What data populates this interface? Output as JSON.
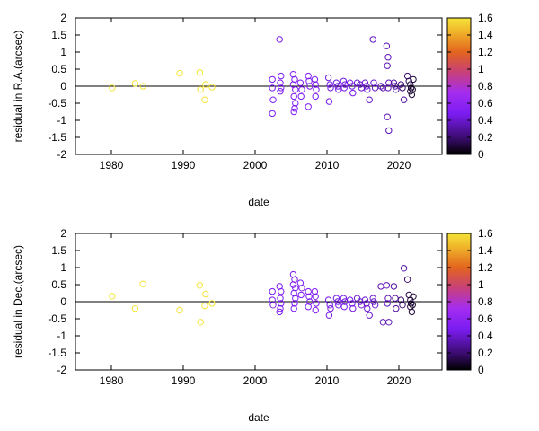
{
  "chart_data": [
    {
      "type": "scatter",
      "xlabel": "date",
      "ylabel": "residual in R.A.(arcsec)",
      "xlim": [
        1975,
        2026
      ],
      "ylim": [
        -2,
        2
      ],
      "x_ticks": [
        "1980",
        "1990",
        "2000",
        "2010",
        "2020"
      ],
      "y_ticks": [
        "-2",
        "-1.5",
        "-1",
        "-0.5",
        "0",
        "0.5",
        "1",
        "1.5",
        "2"
      ],
      "colorbar": {
        "range": [
          0,
          1.6
        ],
        "ticks": [
          "0",
          "0.2",
          "0.4",
          "0.6",
          "0.8",
          "1",
          "1.2",
          "1.4",
          "1.6"
        ]
      },
      "zero_line": true,
      "grid": false,
      "points": [
        [
          1980.1,
          -0.05,
          1.6
        ],
        [
          1983.3,
          0.08,
          1.6
        ],
        [
          1984.4,
          0.0,
          1.6
        ],
        [
          1989.5,
          0.38,
          1.6
        ],
        [
          1992.3,
          0.4,
          1.6
        ],
        [
          1992.4,
          -0.1,
          1.6
        ],
        [
          1993.1,
          0.05,
          1.6
        ],
        [
          1993.0,
          -0.4,
          1.6
        ],
        [
          1994.0,
          -0.03,
          1.6
        ],
        [
          2002.4,
          0.2,
          0.5
        ],
        [
          2002.4,
          -0.05,
          0.5
        ],
        [
          2002.5,
          -0.4,
          0.5
        ],
        [
          2002.4,
          -0.8,
          0.5
        ],
        [
          2003.4,
          1.37,
          0.5
        ],
        [
          2003.6,
          0.3,
          0.5
        ],
        [
          2003.5,
          0.1,
          0.5
        ],
        [
          2003.6,
          -0.05,
          0.5
        ],
        [
          2003.5,
          -0.15,
          0.5
        ],
        [
          2005.3,
          0.35,
          0.5
        ],
        [
          2005.5,
          0.2,
          0.5
        ],
        [
          2005.3,
          0.05,
          0.5
        ],
        [
          2005.6,
          -0.1,
          0.5
        ],
        [
          2005.4,
          -0.3,
          0.5
        ],
        [
          2005.6,
          -0.5,
          0.5
        ],
        [
          2005.5,
          -0.65,
          0.5
        ],
        [
          2005.4,
          -0.75,
          0.5
        ],
        [
          2006.3,
          0.1,
          0.5
        ],
        [
          2006.5,
          -0.1,
          0.5
        ],
        [
          2006.4,
          -0.3,
          0.5
        ],
        [
          2007.4,
          0.3,
          0.5
        ],
        [
          2007.5,
          0.15,
          0.5
        ],
        [
          2007.6,
          0.0,
          0.5
        ],
        [
          2007.4,
          -0.6,
          0.5
        ],
        [
          2008.3,
          0.2,
          0.5
        ],
        [
          2008.4,
          0.05,
          0.5
        ],
        [
          2008.5,
          -0.1,
          0.5
        ],
        [
          2008.4,
          -0.3,
          0.5
        ],
        [
          2010.2,
          0.25,
          0.45
        ],
        [
          2010.4,
          0.05,
          0.45
        ],
        [
          2010.5,
          -0.05,
          0.45
        ],
        [
          2010.3,
          -0.45,
          0.45
        ],
        [
          2011.3,
          0.1,
          0.45
        ],
        [
          2011.5,
          0.0,
          0.45
        ],
        [
          2011.6,
          -0.1,
          0.45
        ],
        [
          2012.3,
          0.15,
          0.45
        ],
        [
          2012.5,
          0.05,
          0.45
        ],
        [
          2012.4,
          -0.05,
          0.45
        ],
        [
          2013.2,
          0.1,
          0.45
        ],
        [
          2013.5,
          0.0,
          0.45
        ],
        [
          2013.6,
          -0.2,
          0.45
        ],
        [
          2014.2,
          0.1,
          0.4
        ],
        [
          2014.6,
          0.05,
          0.4
        ],
        [
          2014.8,
          -0.05,
          0.4
        ],
        [
          2015.3,
          0.1,
          0.4
        ],
        [
          2015.5,
          0.0,
          0.4
        ],
        [
          2015.6,
          -0.1,
          0.4
        ],
        [
          2015.9,
          -0.4,
          0.4
        ],
        [
          2016.4,
          1.37,
          0.4
        ],
        [
          2016.5,
          0.1,
          0.4
        ],
        [
          2016.7,
          -0.05,
          0.4
        ],
        [
          2017.5,
          0.0,
          0.35
        ],
        [
          2017.8,
          -0.05,
          0.35
        ],
        [
          2018.3,
          1.18,
          0.35
        ],
        [
          2018.5,
          0.85,
          0.35
        ],
        [
          2018.4,
          0.6,
          0.35
        ],
        [
          2018.6,
          0.1,
          0.35
        ],
        [
          2018.5,
          -0.05,
          0.35
        ],
        [
          2018.4,
          -0.9,
          0.35
        ],
        [
          2018.6,
          -1.3,
          0.35
        ],
        [
          2019.3,
          0.1,
          0.3
        ],
        [
          2019.5,
          0.0,
          0.3
        ],
        [
          2019.6,
          -0.1,
          0.3
        ],
        [
          2020.3,
          0.05,
          0.2
        ],
        [
          2020.5,
          -0.05,
          0.2
        ],
        [
          2020.7,
          -0.4,
          0.3
        ],
        [
          2021.2,
          0.3,
          0.2
        ],
        [
          2021.4,
          0.15,
          0.15
        ],
        [
          2021.6,
          0.05,
          0.1
        ],
        [
          2021.7,
          -0.05,
          0.1
        ],
        [
          2021.6,
          -0.15,
          0.1
        ],
        [
          2021.8,
          -0.25,
          0.1
        ],
        [
          2022.0,
          0.2,
          0.1
        ],
        [
          2021.9,
          -0.1,
          0.05
        ]
      ]
    },
    {
      "type": "scatter",
      "xlabel": "date",
      "ylabel": "residual in Dec.(arcsec)",
      "xlim": [
        1975,
        2026
      ],
      "ylim": [
        -2,
        2
      ],
      "x_ticks": [
        "1980",
        "1990",
        "2000",
        "2010",
        "2020"
      ],
      "y_ticks": [
        "-2",
        "-1.5",
        "-1",
        "-0.5",
        "0",
        "0.5",
        "1",
        "1.5",
        "2"
      ],
      "colorbar": {
        "range": [
          0,
          1.6
        ],
        "ticks": [
          "0",
          "0.2",
          "0.4",
          "0.6",
          "0.8",
          "1",
          "1.2",
          "1.4",
          "1.6"
        ]
      },
      "zero_line": true,
      "grid": false,
      "points": [
        [
          1980.1,
          0.16,
          1.6
        ],
        [
          1983.3,
          -0.2,
          1.6
        ],
        [
          1984.4,
          0.52,
          1.6
        ],
        [
          1989.5,
          -0.25,
          1.6
        ],
        [
          1992.3,
          0.48,
          1.6
        ],
        [
          1992.4,
          -0.6,
          1.6
        ],
        [
          1993.1,
          0.22,
          1.6
        ],
        [
          1993.0,
          -0.12,
          1.6
        ],
        [
          1994.0,
          -0.05,
          1.6
        ],
        [
          2002.4,
          0.3,
          0.5
        ],
        [
          2002.4,
          0.05,
          0.5
        ],
        [
          2002.5,
          -0.1,
          0.5
        ],
        [
          2003.4,
          0.45,
          0.5
        ],
        [
          2003.6,
          0.3,
          0.5
        ],
        [
          2003.5,
          0.1,
          0.5
        ],
        [
          2003.6,
          -0.05,
          0.5
        ],
        [
          2003.5,
          -0.2,
          0.5
        ],
        [
          2003.4,
          -0.3,
          0.5
        ],
        [
          2005.3,
          0.8,
          0.5
        ],
        [
          2005.5,
          0.65,
          0.5
        ],
        [
          2005.3,
          0.5,
          0.5
        ],
        [
          2005.6,
          0.4,
          0.5
        ],
        [
          2005.4,
          0.25,
          0.5
        ],
        [
          2005.6,
          0.1,
          0.5
        ],
        [
          2005.5,
          -0.05,
          0.5
        ],
        [
          2005.4,
          -0.2,
          0.5
        ],
        [
          2006.3,
          0.55,
          0.5
        ],
        [
          2006.5,
          0.4,
          0.5
        ],
        [
          2006.4,
          0.2,
          0.5
        ],
        [
          2007.4,
          0.3,
          0.5
        ],
        [
          2007.5,
          0.15,
          0.5
        ],
        [
          2007.6,
          0.0,
          0.5
        ],
        [
          2007.4,
          -0.15,
          0.5
        ],
        [
          2008.3,
          0.3,
          0.5
        ],
        [
          2008.4,
          0.15,
          0.5
        ],
        [
          2008.5,
          -0.05,
          0.5
        ],
        [
          2008.4,
          -0.25,
          0.5
        ],
        [
          2010.2,
          0.05,
          0.45
        ],
        [
          2010.4,
          -0.1,
          0.45
        ],
        [
          2010.5,
          -0.2,
          0.45
        ],
        [
          2010.3,
          -0.4,
          0.45
        ],
        [
          2011.3,
          0.1,
          0.45
        ],
        [
          2011.5,
          0.0,
          0.45
        ],
        [
          2011.6,
          -0.1,
          0.45
        ],
        [
          2012.3,
          0.1,
          0.45
        ],
        [
          2012.5,
          0.0,
          0.45
        ],
        [
          2012.4,
          -0.15,
          0.45
        ],
        [
          2013.2,
          0.05,
          0.45
        ],
        [
          2013.5,
          -0.05,
          0.45
        ],
        [
          2013.6,
          -0.2,
          0.45
        ],
        [
          2014.2,
          0.1,
          0.4
        ],
        [
          2014.6,
          0.0,
          0.4
        ],
        [
          2014.8,
          -0.1,
          0.4
        ],
        [
          2015.3,
          0.05,
          0.4
        ],
        [
          2015.5,
          -0.05,
          0.4
        ],
        [
          2015.6,
          -0.2,
          0.4
        ],
        [
          2015.9,
          -0.4,
          0.4
        ],
        [
          2016.4,
          0.1,
          0.4
        ],
        [
          2016.5,
          0.0,
          0.4
        ],
        [
          2016.7,
          -0.1,
          0.4
        ],
        [
          2017.5,
          0.45,
          0.35
        ],
        [
          2017.8,
          -0.6,
          0.35
        ],
        [
          2018.3,
          0.48,
          0.35
        ],
        [
          2018.5,
          0.1,
          0.35
        ],
        [
          2018.4,
          -0.05,
          0.35
        ],
        [
          2018.6,
          -0.6,
          0.35
        ],
        [
          2019.3,
          0.45,
          0.3
        ],
        [
          2019.5,
          0.1,
          0.3
        ],
        [
          2019.6,
          -0.2,
          0.3
        ],
        [
          2020.3,
          0.05,
          0.2
        ],
        [
          2020.5,
          -0.1,
          0.2
        ],
        [
          2020.7,
          0.98,
          0.3
        ],
        [
          2021.2,
          0.65,
          0.2
        ],
        [
          2021.4,
          0.2,
          0.15
        ],
        [
          2021.6,
          0.05,
          0.1
        ],
        [
          2021.7,
          -0.05,
          0.1
        ],
        [
          2021.6,
          -0.15,
          0.1
        ],
        [
          2021.8,
          -0.3,
          0.1
        ],
        [
          2022.0,
          0.15,
          0.1
        ],
        [
          2021.9,
          -0.1,
          0.05
        ]
      ]
    }
  ]
}
